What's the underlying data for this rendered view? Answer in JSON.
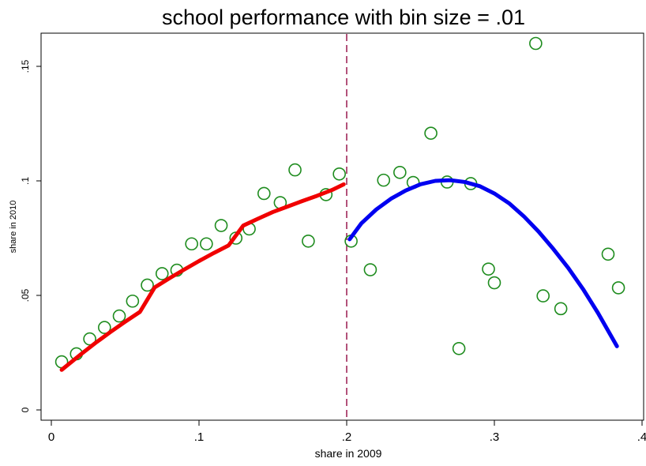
{
  "chart_data": {
    "type": "scatter",
    "title": "school performance with bin size = .01",
    "xlabel": "share in 2009",
    "ylabel": "share in 2010",
    "xlim": [
      0,
      0.4
    ],
    "ylim": [
      0,
      0.16
    ],
    "xticks": [
      {
        "value": 0,
        "label": "0"
      },
      {
        "value": 0.1,
        "label": ".1"
      },
      {
        "value": 0.2,
        "label": ".2"
      },
      {
        "value": 0.3,
        "label": ".3"
      },
      {
        "value": 0.4,
        "label": ".4"
      }
    ],
    "yticks": [
      {
        "value": 0,
        "label": "0"
      },
      {
        "value": 0.05,
        "label": ".05"
      },
      {
        "value": 0.1,
        "label": ".1"
      },
      {
        "value": 0.15,
        "label": ".15"
      }
    ],
    "grid": false,
    "legend": "none",
    "cutoff": {
      "x": 0.2,
      "style": "dashed",
      "color": "#a0285a"
    },
    "scatter": {
      "color": "#1e8c1e",
      "marker": "hollow-circle",
      "points": [
        [
          0.007,
          0.021
        ],
        [
          0.017,
          0.0245
        ],
        [
          0.026,
          0.031
        ],
        [
          0.036,
          0.036
        ],
        [
          0.046,
          0.041
        ],
        [
          0.055,
          0.0475
        ],
        [
          0.065,
          0.0545
        ],
        [
          0.075,
          0.0595
        ],
        [
          0.085,
          0.061
        ],
        [
          0.095,
          0.0725
        ],
        [
          0.105,
          0.0725
        ],
        [
          0.115,
          0.0805
        ],
        [
          0.125,
          0.075
        ],
        [
          0.134,
          0.079
        ],
        [
          0.144,
          0.0945
        ],
        [
          0.155,
          0.0905
        ],
        [
          0.165,
          0.1048
        ],
        [
          0.174,
          0.0737
        ],
        [
          0.186,
          0.094
        ],
        [
          0.195,
          0.103
        ],
        [
          0.203,
          0.0737
        ],
        [
          0.216,
          0.0612
        ],
        [
          0.225,
          0.1003
        ],
        [
          0.236,
          0.1037
        ],
        [
          0.245,
          0.0993
        ],
        [
          0.257,
          0.1208
        ],
        [
          0.276,
          0.0268
        ],
        [
          0.268,
          0.0995
        ],
        [
          0.284,
          0.0988
        ],
        [
          0.296,
          0.0615
        ],
        [
          0.3,
          0.0555
        ],
        [
          0.328,
          0.16
        ],
        [
          0.333,
          0.0498
        ],
        [
          0.345,
          0.0442
        ],
        [
          0.377,
          0.068
        ],
        [
          0.384,
          0.0533
        ]
      ]
    },
    "fits": [
      {
        "side": "left",
        "color": "#f00000",
        "x": [
          0.007,
          0.02,
          0.03,
          0.04,
          0.05,
          0.06,
          0.07,
          0.08,
          0.09,
          0.1,
          0.11,
          0.12,
          0.13,
          0.14,
          0.15,
          0.16,
          0.17,
          0.18,
          0.19,
          0.198
        ],
        "y": [
          0.0175,
          0.0243,
          0.0293,
          0.034,
          0.0385,
          0.0428,
          0.0535,
          0.0575,
          0.0613,
          0.065,
          0.0685,
          0.0718,
          0.0805,
          0.0835,
          0.0864,
          0.0888,
          0.0912,
          0.0935,
          0.096,
          0.0985
        ]
      },
      {
        "side": "right",
        "color": "#0000f0",
        "x": [
          0.202,
          0.21,
          0.22,
          0.23,
          0.24,
          0.25,
          0.26,
          0.27,
          0.28,
          0.29,
          0.3,
          0.31,
          0.32,
          0.33,
          0.34,
          0.35,
          0.36,
          0.37,
          0.383
        ],
        "y": [
          0.0745,
          0.0815,
          0.0875,
          0.0922,
          0.0958,
          0.0985,
          0.1,
          0.1003,
          0.0995,
          0.0977,
          0.0945,
          0.0902,
          0.0845,
          0.0778,
          0.0702,
          0.062,
          0.0528,
          0.0425,
          0.0278
        ]
      }
    ]
  }
}
